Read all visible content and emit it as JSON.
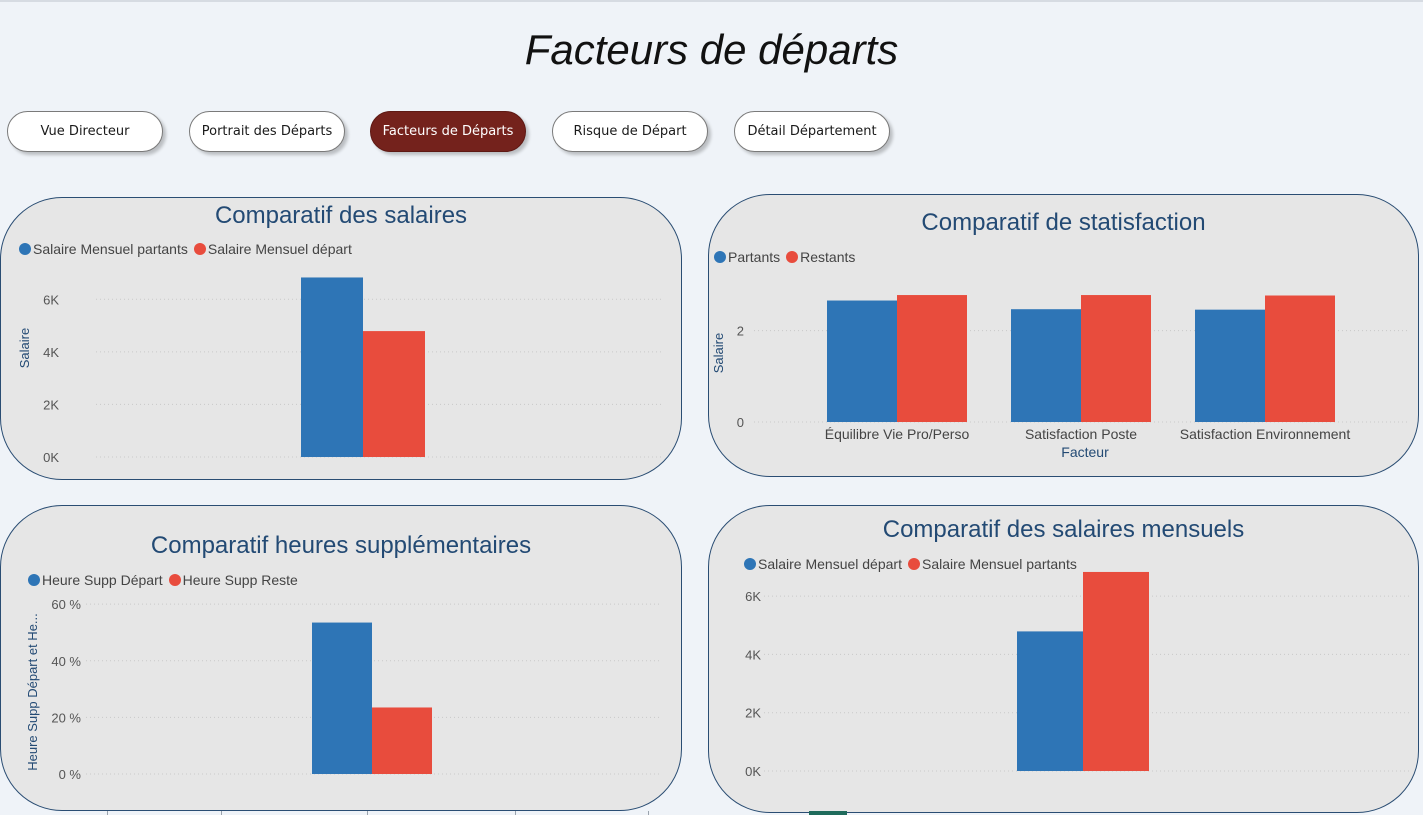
{
  "page": {
    "title": "Facteurs de départs"
  },
  "nav": [
    {
      "label": "Vue Directeur",
      "active": false
    },
    {
      "label": "Portrait des Départs",
      "active": false
    },
    {
      "label": "Facteurs de Départs",
      "active": true
    },
    {
      "label": "Risque de Départ",
      "active": false
    },
    {
      "label": "Détail Département",
      "active": false
    }
  ],
  "colors": {
    "blue": "#2e75b6",
    "red": "#e84c3d",
    "title": "#234a74",
    "active_nav": "#74221c"
  },
  "charts": {
    "salaires": {
      "title": "Comparatif des salaires",
      "legend": [
        "Salaire Mensuel partants",
        "Salaire Mensuel départ"
      ],
      "ylabel": "Salaire",
      "xlabel": "",
      "ticks": [
        "0K",
        "2K",
        "4K",
        "6K"
      ]
    },
    "satisfaction": {
      "title": "Comparatif de statisfaction",
      "legend": [
        "Partants",
        "Restants"
      ],
      "ylabel": "Salaire",
      "xlabel": "Facteur",
      "ticks": [
        "0",
        "2"
      ]
    },
    "heures": {
      "title": "Comparatif heures supplémentaires",
      "legend": [
        "Heure Supp Départ",
        "Heure Supp Reste"
      ],
      "ylabel": "Heure Supp Départ et He...",
      "xlabel": "",
      "ticks": [
        "0 %",
        "20 %",
        "40 %",
        "60 %"
      ]
    },
    "mensuels": {
      "title": "Comparatif des salaires mensuels",
      "legend": [
        "Salaire Mensuel départ",
        "Salaire Mensuel partants"
      ],
      "ylabel": "",
      "xlabel": "",
      "ticks": [
        "0K",
        "2K",
        "4K",
        "6K"
      ]
    }
  },
  "chart_data": [
    {
      "type": "bar",
      "title": "Comparatif des salaires",
      "ylabel": "Salaire",
      "ylim": [
        0,
        7000
      ],
      "y_ticks": [
        0,
        2000,
        4000,
        6000
      ],
      "grid": true,
      "legend_position": "top-left",
      "series": [
        {
          "name": "Salaire Mensuel partants",
          "values": [
            6830
          ]
        },
        {
          "name": "Salaire Mensuel départ",
          "values": [
            4790
          ]
        }
      ]
    },
    {
      "type": "bar",
      "title": "Comparatif de statisfaction",
      "xlabel": "Facteur",
      "ylabel": "Salaire",
      "categories": [
        "Équilibre Vie Pro/Perso",
        "Satisfaction Poste",
        "Satisfaction Environnement"
      ],
      "ylim": [
        0,
        3
      ],
      "y_ticks": [
        0,
        2
      ],
      "grid": true,
      "legend_position": "top-left",
      "series": [
        {
          "name": "Partants",
          "values": [
            2.66,
            2.47,
            2.46
          ]
        },
        {
          "name": "Restants",
          "values": [
            2.78,
            2.78,
            2.77
          ]
        }
      ]
    },
    {
      "type": "bar",
      "title": "Comparatif heures supplémentaires",
      "ylabel": "Heure Supp Départ et He...",
      "ylim": [
        0,
        0.65
      ],
      "y_ticks": [
        0,
        0.2,
        0.4,
        0.6
      ],
      "grid": true,
      "legend_position": "top-left",
      "series": [
        {
          "name": "Heure Supp Départ",
          "values": [
            0.535
          ]
        },
        {
          "name": "Heure Supp Reste",
          "values": [
            0.235
          ]
        }
      ]
    },
    {
      "type": "bar",
      "title": "Comparatif des salaires mensuels",
      "ylim": [
        0,
        7000
      ],
      "y_ticks": [
        0,
        2000,
        4000,
        6000
      ],
      "grid": true,
      "legend_position": "top-left",
      "series": [
        {
          "name": "Salaire Mensuel départ",
          "values": [
            4790
          ]
        },
        {
          "name": "Salaire Mensuel partants",
          "values": [
            6830
          ]
        }
      ]
    }
  ]
}
